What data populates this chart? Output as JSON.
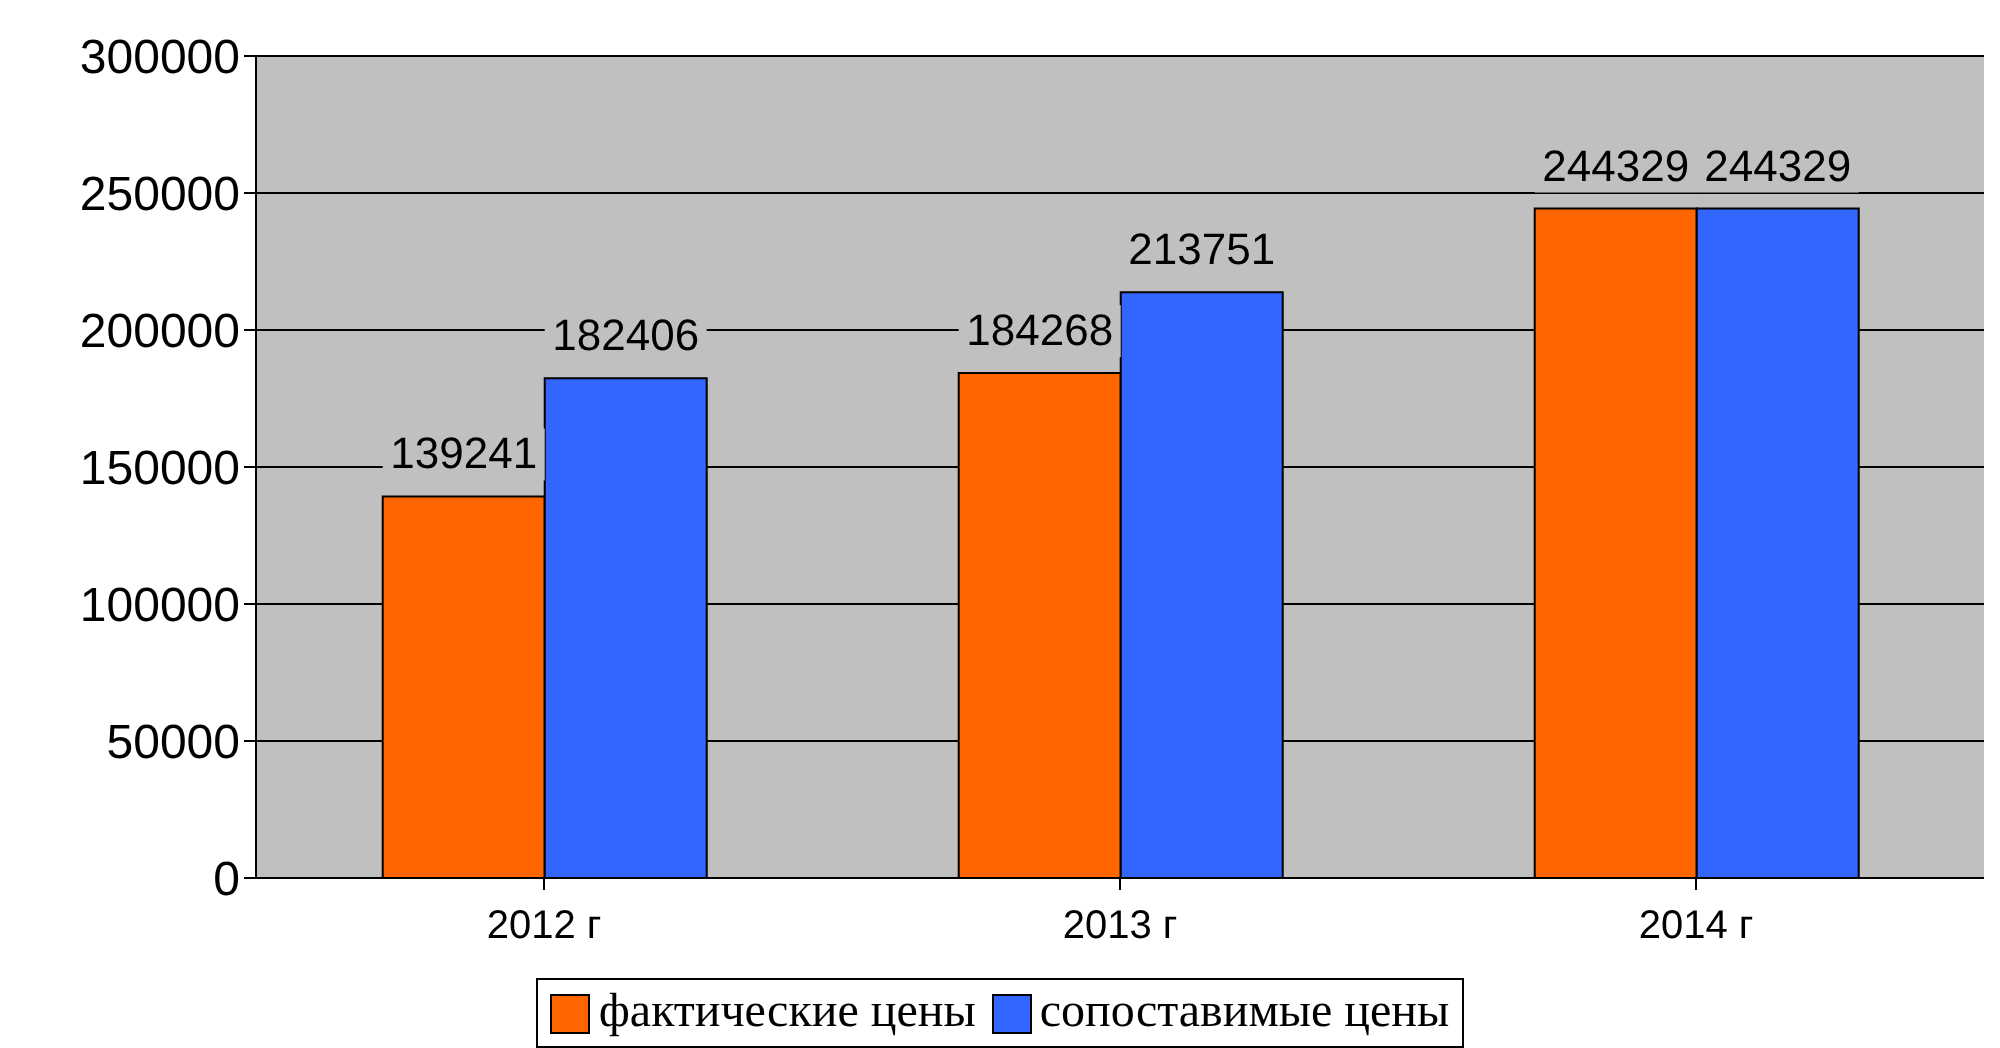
{
  "chart_data": {
    "type": "bar",
    "categories": [
      "2012 г",
      "2013 г",
      "2014 г"
    ],
    "series": [
      {
        "name": "фактические цены",
        "color": "#ff6600",
        "values": [
          139241,
          184268,
          244329
        ]
      },
      {
        "name": "сопоставимые цены",
        "color": "#3366ff",
        "values": [
          182406,
          213751,
          244329
        ]
      }
    ],
    "ylim": [
      0,
      300000
    ],
    "yticks": [
      0,
      50000,
      100000,
      150000,
      200000,
      250000,
      300000
    ],
    "grid": "y",
    "legend": "bottom",
    "data_labels": true
  }
}
